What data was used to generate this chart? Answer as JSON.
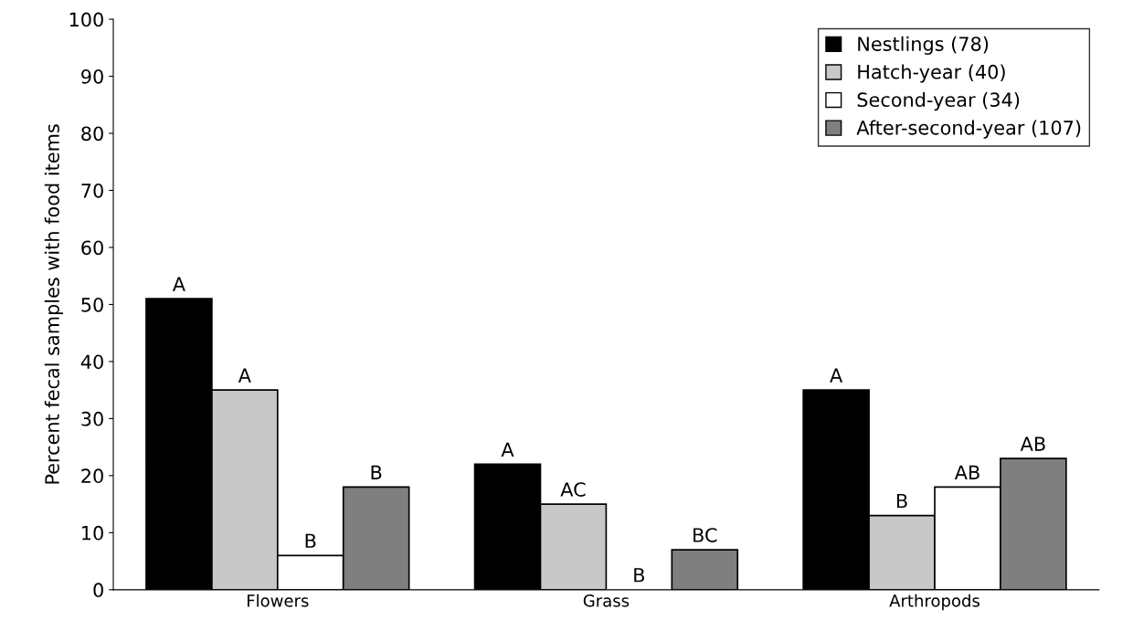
{
  "chart_data": {
    "type": "bar",
    "ylabel": "Percent fecal samples with food items",
    "categories": [
      "Flowers",
      "Grass",
      "Arthropods"
    ],
    "series": [
      {
        "name": "Nestlings (78)",
        "color": "#000000",
        "values": [
          51,
          22,
          35
        ],
        "value_labels": [
          "A",
          "A",
          "A"
        ]
      },
      {
        "name": "Hatch-year (40)",
        "color": "#c8c8c8",
        "values": [
          35,
          15,
          13
        ],
        "value_labels": [
          "A",
          "AC",
          "B"
        ]
      },
      {
        "name": "Second-year (34)",
        "color": "#ffffff",
        "values": [
          6,
          0,
          18
        ],
        "value_labels": [
          "B",
          "B",
          "AB"
        ]
      },
      {
        "name": "After-second-year (107)",
        "color": "#7f7f7f",
        "values": [
          18,
          7,
          23
        ],
        "value_labels": [
          "B",
          "BC",
          "AB"
        ]
      }
    ],
    "ylim": [
      0,
      100
    ],
    "yticks": [
      0,
      10,
      20,
      30,
      40,
      50,
      60,
      70,
      80,
      90,
      100
    ],
    "grid": false,
    "legend": "top right"
  }
}
